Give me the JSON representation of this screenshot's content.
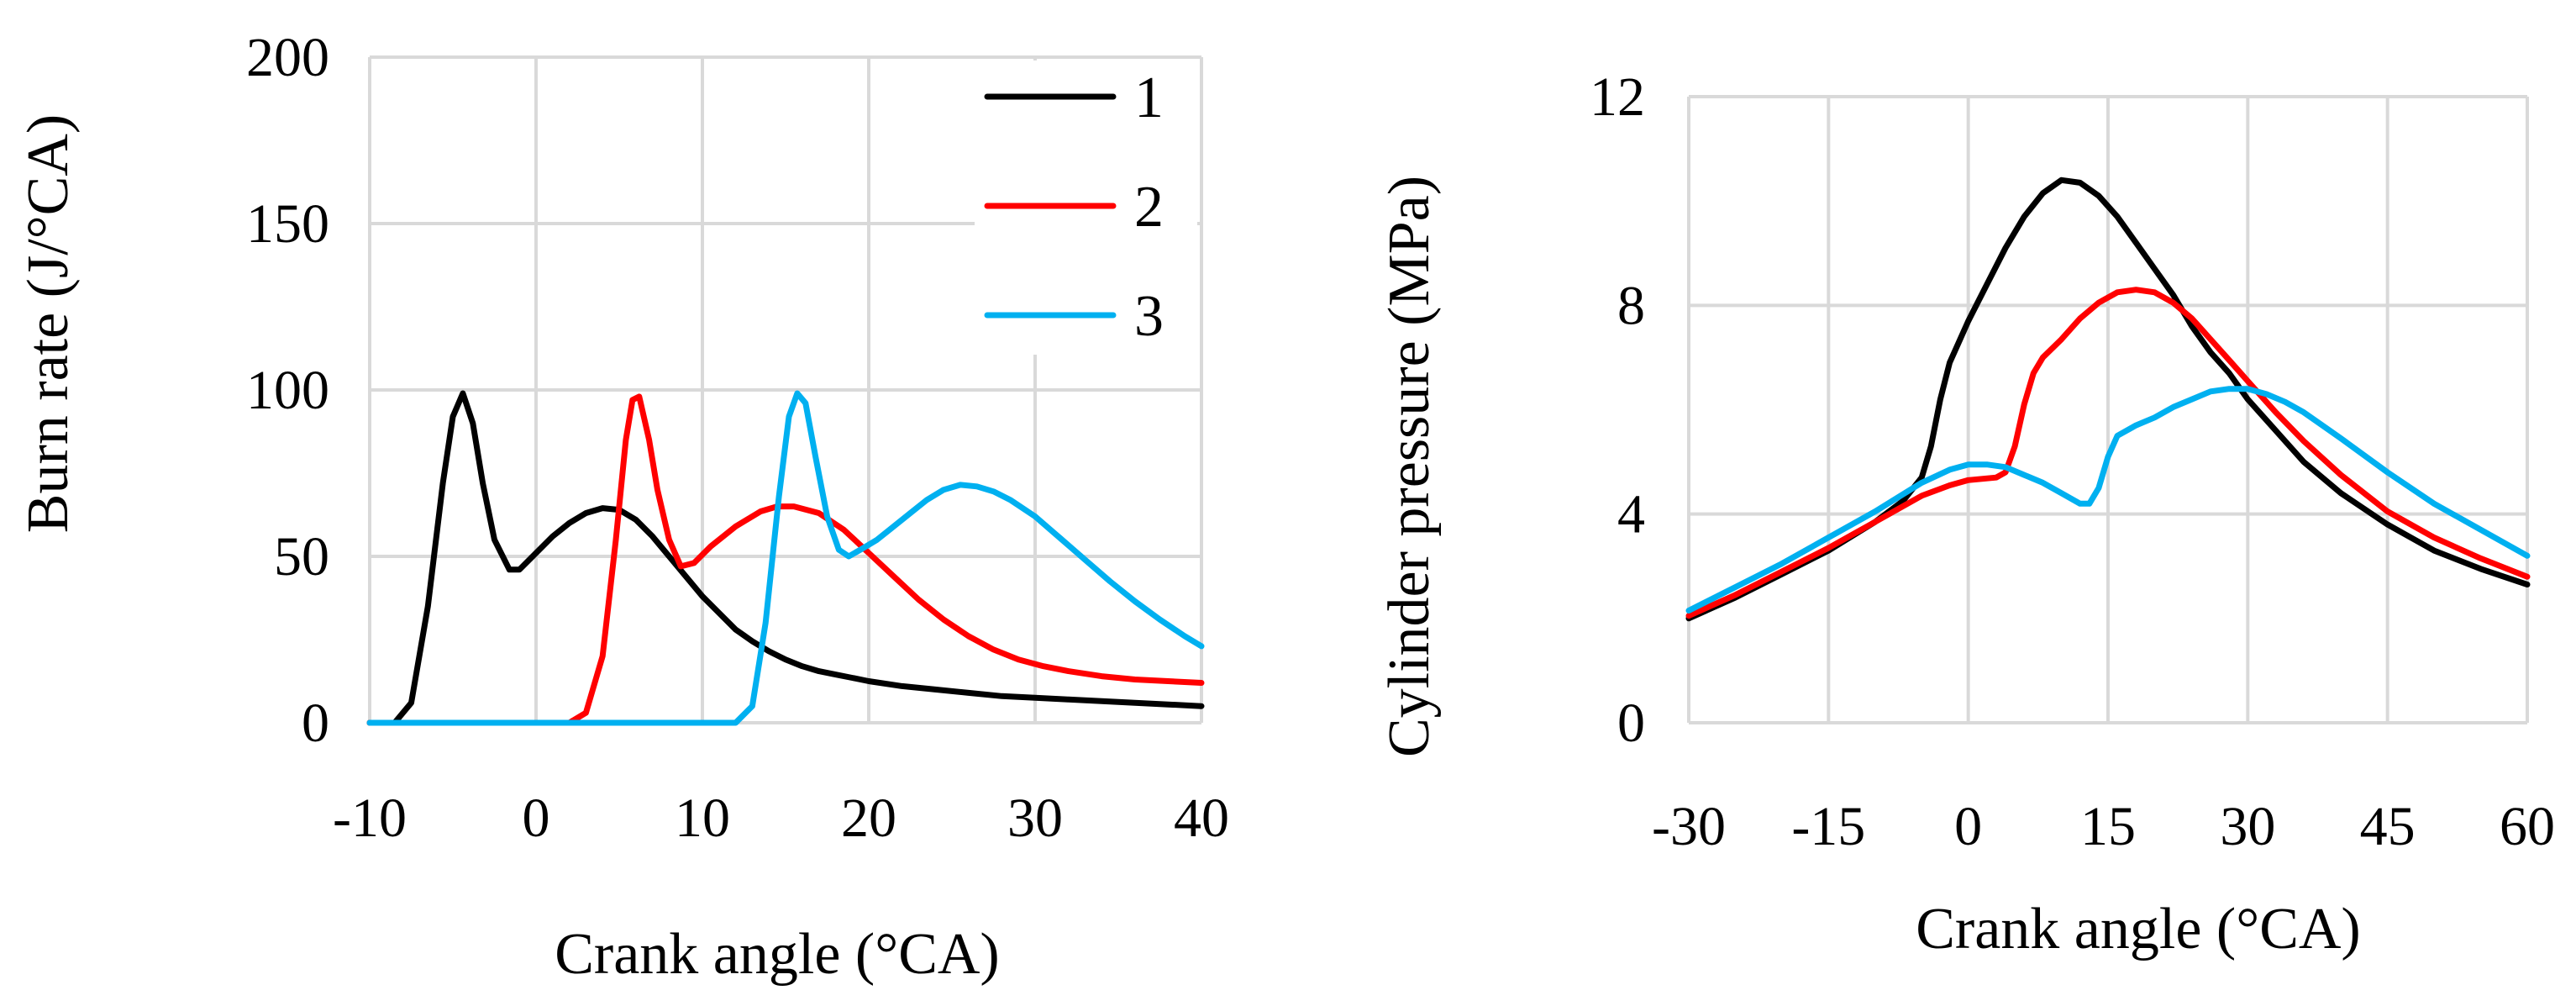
{
  "chart_data": [
    {
      "type": "line",
      "title": "",
      "xlabel": "Crank angle (°CA)",
      "ylabel": "Burn rate (J/°CA)",
      "xlim": [
        -10,
        40
      ],
      "ylim": [
        0,
        200
      ],
      "xticks": [
        "-10",
        "0",
        "10",
        "20",
        "30",
        "40"
      ],
      "yticks": [
        "0",
        "50",
        "100",
        "150",
        "200"
      ],
      "grid": true,
      "legend_position": "top-right",
      "series": [
        {
          "name": "1",
          "color": "#000000",
          "points": [
            [
              -10,
              0
            ],
            [
              -8.5,
              0
            ],
            [
              -7.5,
              6
            ],
            [
              -6.5,
              35
            ],
            [
              -5.6,
              72
            ],
            [
              -5,
              92
            ],
            [
              -4.4,
              99
            ],
            [
              -3.8,
              90
            ],
            [
              -3.2,
              72
            ],
            [
              -2.5,
              55
            ],
            [
              -1.6,
              46
            ],
            [
              -1,
              46
            ],
            [
              0,
              51
            ],
            [
              1,
              56
            ],
            [
              2,
              60
            ],
            [
              3,
              63
            ],
            [
              4,
              64.5
            ],
            [
              5,
              64
            ],
            [
              6,
              61
            ],
            [
              7,
              56
            ],
            [
              8,
              50
            ],
            [
              9,
              44
            ],
            [
              10,
              38
            ],
            [
              11,
              33
            ],
            [
              12,
              28
            ],
            [
              13,
              24.5
            ],
            [
              14,
              21.5
            ],
            [
              15,
              19
            ],
            [
              16,
              17
            ],
            [
              17,
              15.5
            ],
            [
              18,
              14.5
            ],
            [
              19,
              13.5
            ],
            [
              20,
              12.5
            ],
            [
              22,
              11
            ],
            [
              24,
              10
            ],
            [
              26,
              9
            ],
            [
              28,
              8
            ],
            [
              30,
              7.5
            ],
            [
              32,
              7
            ],
            [
              34,
              6.5
            ],
            [
              36,
              6
            ],
            [
              38,
              5.5
            ],
            [
              40,
              5
            ]
          ]
        },
        {
          "name": "2",
          "color": "#ff0000",
          "points": [
            [
              -10,
              0
            ],
            [
              2,
              0
            ],
            [
              3,
              3
            ],
            [
              4,
              20
            ],
            [
              4.8,
              55
            ],
            [
              5.4,
              85
            ],
            [
              5.8,
              97
            ],
            [
              6.2,
              98
            ],
            [
              6.8,
              85
            ],
            [
              7.3,
              70
            ],
            [
              8,
              55
            ],
            [
              8.7,
              47
            ],
            [
              9.5,
              48
            ],
            [
              10.5,
              53
            ],
            [
              12,
              59
            ],
            [
              13.5,
              63.5
            ],
            [
              14.5,
              65
            ],
            [
              15.5,
              65
            ],
            [
              17,
              63
            ],
            [
              18.5,
              58
            ],
            [
              20,
              51
            ],
            [
              21.5,
              44
            ],
            [
              23,
              37
            ],
            [
              24.5,
              31
            ],
            [
              26,
              26
            ],
            [
              27.5,
              22
            ],
            [
              29,
              19
            ],
            [
              30.5,
              17
            ],
            [
              32,
              15.5
            ],
            [
              34,
              14
            ],
            [
              36,
              13
            ],
            [
              38,
              12.5
            ],
            [
              40,
              12
            ]
          ]
        },
        {
          "name": "3",
          "color": "#00b0f0",
          "points": [
            [
              -10,
              0
            ],
            [
              12,
              0
            ],
            [
              13,
              5
            ],
            [
              13.8,
              30
            ],
            [
              14.6,
              68
            ],
            [
              15.2,
              92
            ],
            [
              15.7,
              99
            ],
            [
              16.2,
              96
            ],
            [
              16.8,
              80
            ],
            [
              17.5,
              62
            ],
            [
              18.2,
              52
            ],
            [
              18.8,
              50
            ],
            [
              19.5,
              52
            ],
            [
              20.5,
              55
            ],
            [
              21.5,
              59
            ],
            [
              22.5,
              63
            ],
            [
              23.5,
              67
            ],
            [
              24.5,
              70
            ],
            [
              25.5,
              71.5
            ],
            [
              26.5,
              71
            ],
            [
              27.5,
              69.5
            ],
            [
              28.5,
              67
            ],
            [
              30,
              62
            ],
            [
              31.5,
              55.5
            ],
            [
              33,
              49
            ],
            [
              34.5,
              42.5
            ],
            [
              36,
              36.5
            ],
            [
              37.5,
              31
            ],
            [
              39,
              26
            ],
            [
              40,
              23
            ]
          ]
        }
      ]
    },
    {
      "type": "line",
      "title": "",
      "xlabel": "Crank angle (°CA)",
      "ylabel": "Cylinder pressure (MPa)",
      "xlim": [
        -30,
        60
      ],
      "ylim": [
        0,
        12
      ],
      "xticks": [
        "-30",
        "-15",
        "0",
        "15",
        "30",
        "45",
        "60"
      ],
      "yticks": [
        "0",
        "4",
        "8",
        "12"
      ],
      "grid": true,
      "series": [
        {
          "name": "1",
          "color": "#000000",
          "points": [
            [
              -30,
              2
            ],
            [
              -25,
              2.4
            ],
            [
              -20,
              2.85
            ],
            [
              -15,
              3.3
            ],
            [
              -10,
              3.85
            ],
            [
              -7,
              4.25
            ],
            [
              -5,
              4.7
            ],
            [
              -4,
              5.3
            ],
            [
              -3,
              6.2
            ],
            [
              -2,
              6.9
            ],
            [
              -1,
              7.3
            ],
            [
              0,
              7.7
            ],
            [
              2,
              8.4
            ],
            [
              4,
              9.1
            ],
            [
              6,
              9.7
            ],
            [
              8,
              10.15
            ],
            [
              10,
              10.4
            ],
            [
              12,
              10.35
            ],
            [
              14,
              10.1
            ],
            [
              16,
              9.7
            ],
            [
              18,
              9.2
            ],
            [
              20,
              8.7
            ],
            [
              22,
              8.2
            ],
            [
              24,
              7.6
            ],
            [
              26,
              7.1
            ],
            [
              28,
              6.7
            ],
            [
              30,
              6.2
            ],
            [
              33,
              5.6
            ],
            [
              36,
              5.0
            ],
            [
              40,
              4.4
            ],
            [
              45,
              3.8
            ],
            [
              50,
              3.3
            ],
            [
              55,
              2.95
            ],
            [
              60,
              2.65
            ]
          ]
        },
        {
          "name": "2",
          "color": "#ff0000",
          "points": [
            [
              -30,
              2.05
            ],
            [
              -25,
              2.45
            ],
            [
              -20,
              2.9
            ],
            [
              -15,
              3.35
            ],
            [
              -10,
              3.85
            ],
            [
              -5,
              4.35
            ],
            [
              -2,
              4.55
            ],
            [
              0,
              4.65
            ],
            [
              3,
              4.7
            ],
            [
              4,
              4.8
            ],
            [
              5,
              5.3
            ],
            [
              6,
              6.1
            ],
            [
              7,
              6.7
            ],
            [
              8,
              7.0
            ],
            [
              10,
              7.35
            ],
            [
              12,
              7.75
            ],
            [
              14,
              8.05
            ],
            [
              16,
              8.25
            ],
            [
              18,
              8.3
            ],
            [
              20,
              8.25
            ],
            [
              22,
              8.05
            ],
            [
              24,
              7.75
            ],
            [
              26,
              7.35
            ],
            [
              28,
              6.95
            ],
            [
              30,
              6.55
            ],
            [
              33,
              5.95
            ],
            [
              36,
              5.4
            ],
            [
              40,
              4.75
            ],
            [
              45,
              4.05
            ],
            [
              50,
              3.55
            ],
            [
              55,
              3.15
            ],
            [
              60,
              2.8
            ]
          ]
        },
        {
          "name": "3",
          "color": "#00b0f0",
          "points": [
            [
              -30,
              2.15
            ],
            [
              -25,
              2.6
            ],
            [
              -20,
              3.05
            ],
            [
              -15,
              3.55
            ],
            [
              -10,
              4.05
            ],
            [
              -5,
              4.6
            ],
            [
              -2,
              4.85
            ],
            [
              0,
              4.95
            ],
            [
              2,
              4.95
            ],
            [
              4,
              4.9
            ],
            [
              6,
              4.75
            ],
            [
              8,
              4.6
            ],
            [
              10,
              4.4
            ],
            [
              12,
              4.2
            ],
            [
              13,
              4.2
            ],
            [
              14,
              4.5
            ],
            [
              15,
              5.1
            ],
            [
              16,
              5.5
            ],
            [
              18,
              5.7
            ],
            [
              20,
              5.85
            ],
            [
              22,
              6.05
            ],
            [
              24,
              6.2
            ],
            [
              26,
              6.35
            ],
            [
              28,
              6.4
            ],
            [
              30,
              6.4
            ],
            [
              32,
              6.3
            ],
            [
              34,
              6.15
            ],
            [
              36,
              5.95
            ],
            [
              40,
              5.45
            ],
            [
              45,
              4.8
            ],
            [
              50,
              4.2
            ],
            [
              55,
              3.7
            ],
            [
              60,
              3.2
            ]
          ]
        }
      ]
    }
  ]
}
